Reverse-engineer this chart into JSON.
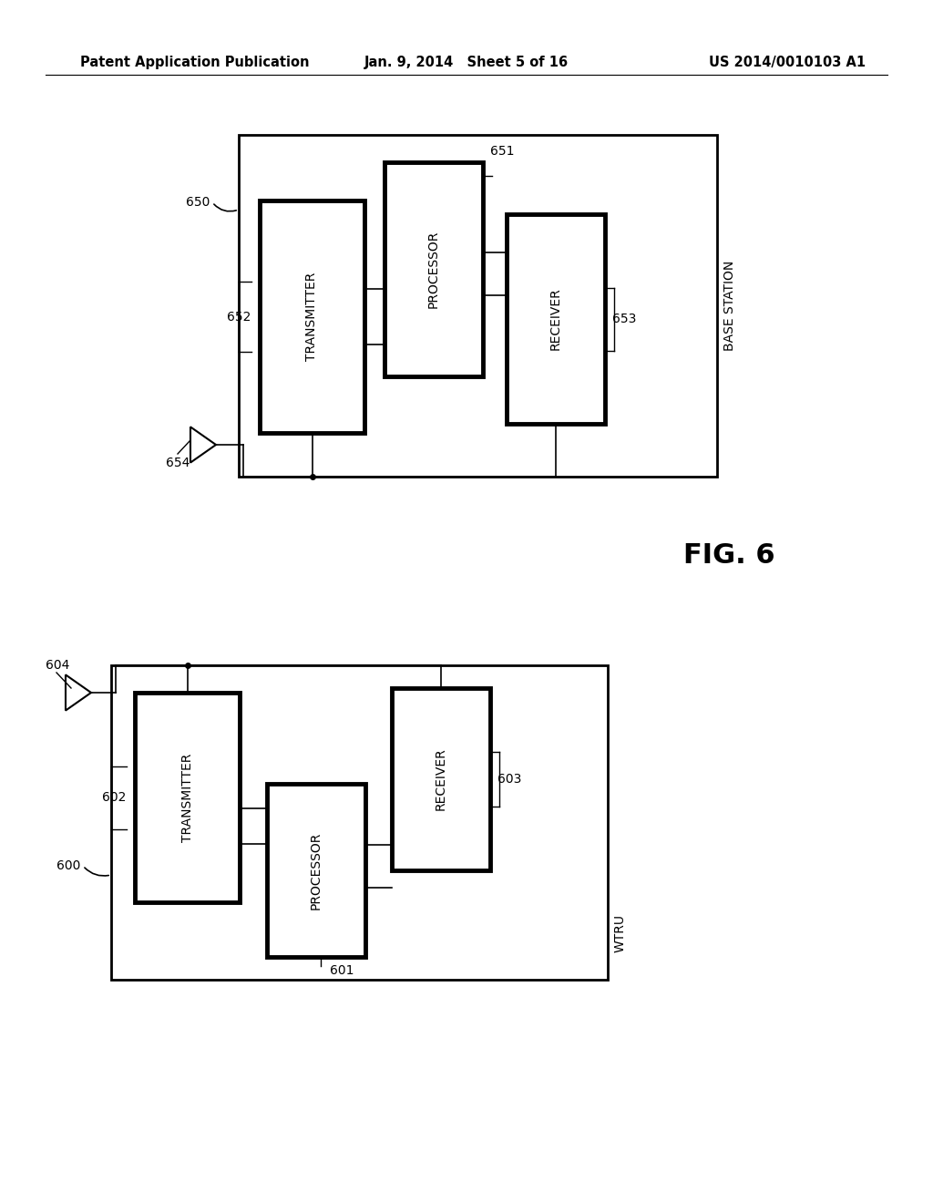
{
  "background_color": "#ffffff",
  "header_left": "Patent Application Publication",
  "header_mid": "Jan. 9, 2014   Sheet 5 of 16",
  "header_right": "US 2014/0010103 A1",
  "fig_label": "FIG. 6"
}
